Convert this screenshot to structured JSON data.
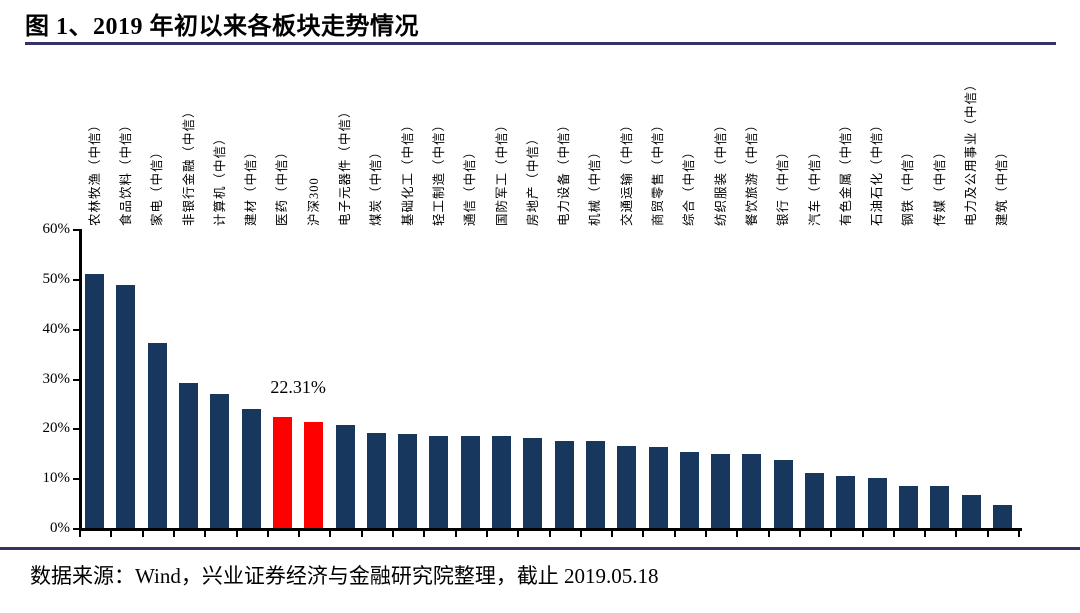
{
  "header": {
    "title": "图 1、2019 年初以来各板块走势情况"
  },
  "footer": {
    "source": "数据来源：Wind，兴业证券经济与金融研究院整理，截止 2019.05.18"
  },
  "colors": {
    "bar": "#17375E",
    "highlight": "#FE0000",
    "rule": "#333366",
    "axis": "#000000"
  },
  "chart_data": {
    "type": "bar",
    "title": "图 1、2019 年初以来各板块走势情况",
    "xlabel": "",
    "ylabel": "",
    "ylim": [
      0,
      60
    ],
    "ytick_labels": [
      "0%",
      "10%",
      "20%",
      "30%",
      "40%",
      "50%",
      "60%"
    ],
    "ytick_values": [
      0,
      10,
      20,
      30,
      40,
      50,
      60
    ],
    "grid": false,
    "legend": null,
    "categories": [
      "农林牧渔（中信）",
      "食品饮料（中信）",
      "家电（中信）",
      "非银行金融（中信）",
      "计算机（中信）",
      "建材（中信）",
      "医药（中信）",
      "沪深300",
      "电子元器件（中信）",
      "煤炭（中信）",
      "基础化工（中信）",
      "轻工制造（中信）",
      "通信（中信）",
      "国防军工（中信）",
      "房地产（中信）",
      "电力设备（中信）",
      "机械（中信）",
      "交通运输（中信）",
      "商贸零售（中信）",
      "综合（中信）",
      "纺织服装（中信）",
      "餐饮旅游（中信）",
      "银行（中信）",
      "汽车（中信）",
      "有色金属（中信）",
      "石油石化（中信）",
      "钢铁（中信）",
      "传媒（中信）",
      "电力及公用事业（中信）",
      "建筑（中信）"
    ],
    "values": [
      51.0,
      48.7,
      37.2,
      29.0,
      26.9,
      23.9,
      22.31,
      21.2,
      20.6,
      19.1,
      18.9,
      18.4,
      18.5,
      18.4,
      18.0,
      17.4,
      17.5,
      16.4,
      16.3,
      15.3,
      14.8,
      14.8,
      13.7,
      11.0,
      10.5,
      10.0,
      8.4,
      8.4,
      6.7,
      4.7
    ],
    "highlight_indices": [
      6,
      7
    ],
    "annotation": {
      "text": "22.31%",
      "category": "医药（中信）",
      "category_index": 6
    }
  }
}
